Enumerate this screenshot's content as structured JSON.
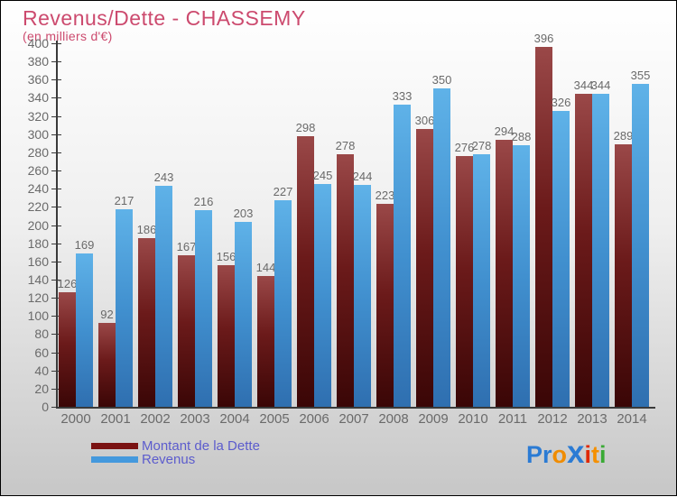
{
  "title": "Revenus/Dette - CHASSEMY",
  "subtitle": "(en milliers d'€)",
  "colors": {
    "bg_top": "#ffffff",
    "bg_mid": "#efefef",
    "bg_bottom": "#c7c7c7",
    "title": "#cc4a6e",
    "axis": "#3a3a3a",
    "tick_label": "#6a6a6a",
    "value_label": "#6a6a6a",
    "legend_text": "#5c5ccd"
  },
  "legend": {
    "items": [
      {
        "label": "Montant de la Dette",
        "color": "#7a1212"
      },
      {
        "label": "Revenus",
        "color": "#4499dd"
      }
    ]
  },
  "brand": {
    "name": "Proxiti",
    "letters": [
      {
        "ch": "P",
        "color": "#2b7bd4"
      },
      {
        "ch": "r",
        "color": "#2b7bd4"
      },
      {
        "ch": "o",
        "color": "#f08c00"
      },
      {
        "ch": "x",
        "color": "#2b7bd4"
      },
      {
        "ch": "i",
        "color": "#e02800"
      },
      {
        "ch": "t",
        "color": "#f59000"
      },
      {
        "ch": "i",
        "color": "#3aaa35"
      }
    ]
  },
  "chart_data": {
    "type": "bar",
    "categories": [
      "2000",
      "2001",
      "2002",
      "2003",
      "2004",
      "2005",
      "2006",
      "2007",
      "2008",
      "2009",
      "2010",
      "2011",
      "2012",
      "2013",
      "2014"
    ],
    "series": [
      {
        "name": "Montant de la Dette",
        "color_top": "#9a4848",
        "color_mid": "#6b1a1a",
        "color_bottom": "#3a0606",
        "values": [
          126,
          92,
          186,
          167,
          156,
          144,
          298,
          278,
          223,
          306,
          276,
          294,
          396,
          344,
          289
        ]
      },
      {
        "name": "Revenus",
        "color_top": "#5fb2e8",
        "color_mid": "#4190cf",
        "color_bottom": "#2f6fb0",
        "values": [
          169,
          217,
          243,
          216,
          203,
          227,
          245,
          244,
          333,
          350,
          278,
          288,
          326,
          344,
          355
        ]
      }
    ],
    "title": "Revenus/Dette - CHASSEMY",
    "xlabel": "",
    "ylabel": "en milliers d'€",
    "ylim": [
      0,
      400
    ],
    "ytick_step": 20,
    "grid": false,
    "legend_position": "bottom-left",
    "value_labels": true
  }
}
